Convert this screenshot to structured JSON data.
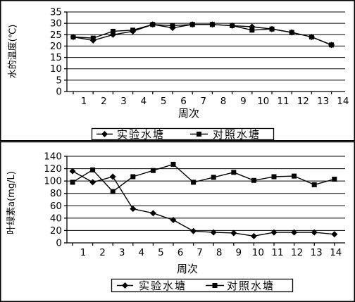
{
  "chart_data": [
    {
      "type": "line",
      "title": "",
      "xlabel": "周次",
      "ylabel": "水的温度(℃)",
      "x": [
        1,
        2,
        3,
        4,
        5,
        6,
        7,
        8,
        9,
        10,
        11,
        12,
        13,
        14
      ],
      "ylim": [
        0,
        35
      ],
      "yticks": [
        0,
        5,
        10,
        15,
        20,
        25,
        30,
        35
      ],
      "grid": true,
      "legend": "bottom",
      "series": [
        {
          "name": "实验水塘",
          "marker": "diamond",
          "color": "#000000",
          "values": [
            24,
            22.5,
            25,
            26.5,
            29.5,
            28,
            29.5,
            29.5,
            29,
            28.5,
            27.5,
            26,
            24,
            20.5
          ]
        },
        {
          "name": "对照水塘",
          "marker": "square",
          "color": "#000000",
          "values": [
            24,
            23.5,
            26.5,
            27,
            29.5,
            29,
            29.5,
            29.5,
            29,
            27,
            27.5,
            26,
            24,
            20.5
          ]
        }
      ]
    },
    {
      "type": "line",
      "title": "",
      "xlabel": "周次",
      "ylabel": "叶绿素a(mg/L)",
      "x": [
        1,
        2,
        3,
        4,
        5,
        6,
        7,
        8,
        9,
        10,
        11,
        12,
        13,
        14
      ],
      "ylim": [
        0,
        140
      ],
      "yticks": [
        0,
        20,
        40,
        60,
        80,
        100,
        120,
        140
      ],
      "grid": true,
      "legend": "bottom",
      "series": [
        {
          "name": "实验水塘",
          "marker": "diamond",
          "color": "#000000",
          "values": [
            116,
            98,
            107,
            55,
            48,
            37,
            19,
            17,
            16,
            11,
            17,
            17,
            17,
            14
          ]
        },
        {
          "name": "对照水塘",
          "marker": "square",
          "color": "#000000",
          "values": [
            98,
            118,
            83,
            107,
            117,
            127,
            98,
            106,
            114,
            101,
            107,
            108,
            94,
            103
          ]
        }
      ]
    }
  ]
}
